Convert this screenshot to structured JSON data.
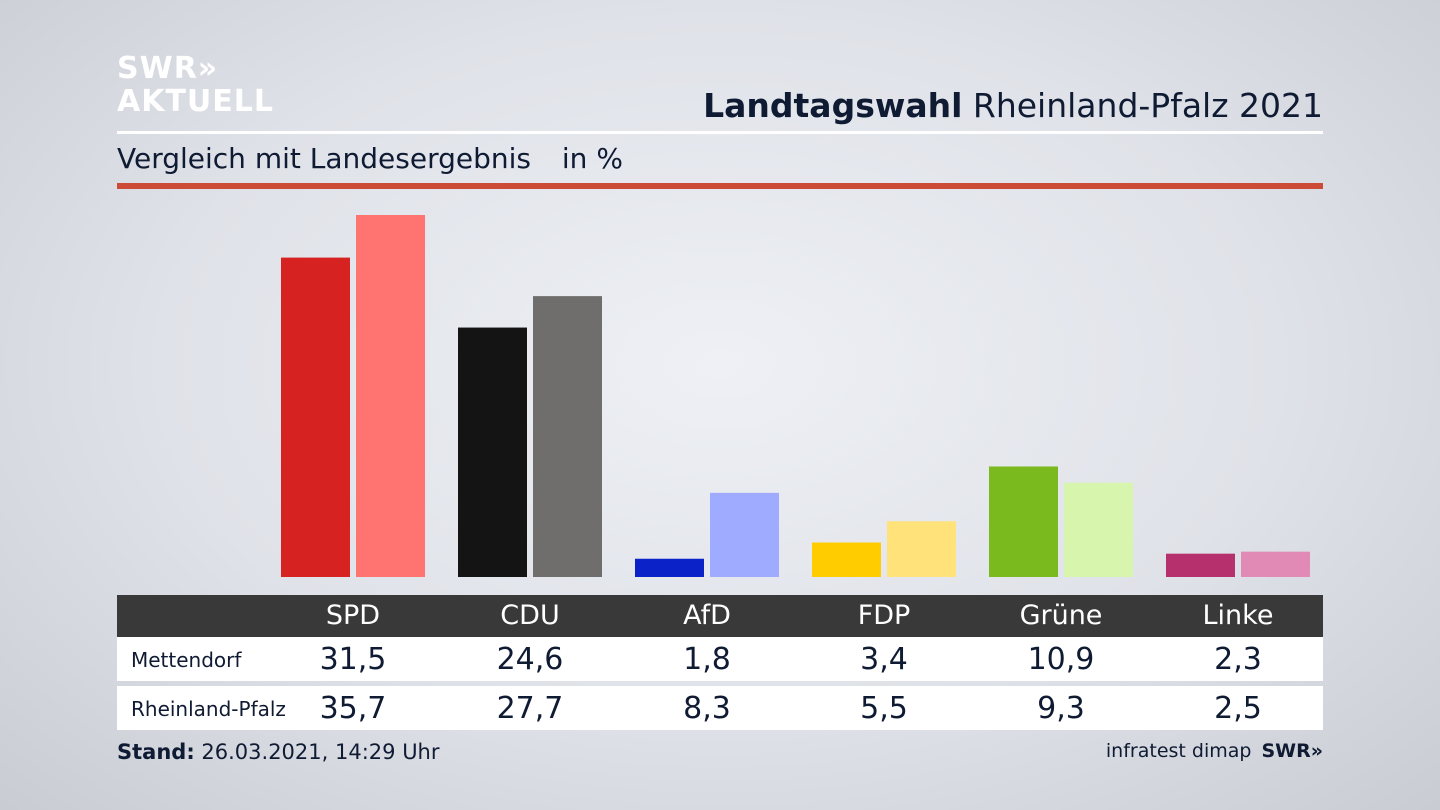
{
  "brand": {
    "line1": "SWR»",
    "line2": "AKTUELL"
  },
  "header": {
    "title_bold": "Landtagswahl",
    "title_rest": "Rheinland-Pfalz 2021"
  },
  "subheader": {
    "text": "Vergleich mit Landesergebnis",
    "unit": "in %"
  },
  "colors": {
    "accent_rule": "#cc4b37",
    "table_header": "#3a3939"
  },
  "chart_data": {
    "type": "bar",
    "title": "Landtagswahl Rheinland-Pfalz 2021",
    "subtitle": "Vergleich mit Landesergebnis",
    "unit": "in %",
    "categories": [
      "SPD",
      "CDU",
      "AfD",
      "FDP",
      "Grüne",
      "Linke"
    ],
    "ylim": [
      0,
      40
    ],
    "grid": false,
    "series": [
      {
        "name": "Mettendorf",
        "values": [
          31.5,
          24.6,
          1.8,
          3.4,
          10.9,
          2.3
        ],
        "value_labels": [
          "31,5",
          "24,6",
          "1,8",
          "3,4",
          "10,9",
          "2,3"
        ],
        "colors": [
          "#d62220",
          "#141414",
          "#0a22c8",
          "#ffcc00",
          "#7aba1e",
          "#b5306c"
        ]
      },
      {
        "name": "Rheinland-Pfalz",
        "values": [
          35.7,
          27.7,
          8.3,
          5.5,
          9.3,
          2.5
        ],
        "value_labels": [
          "35,7",
          "27,7",
          "8,3",
          "5,5",
          "9,3",
          "2,5"
        ],
        "colors": [
          "#ff7470",
          "#706e6c",
          "#9eabff",
          "#ffe27a",
          "#d8f5ae",
          "#e08ab5"
        ]
      }
    ]
  },
  "footer": {
    "stand_label": "Stand:",
    "stand_value": "26.03.2021, 14:29 Uhr",
    "source": "infratest dimap",
    "source_brand": "SWR»"
  }
}
